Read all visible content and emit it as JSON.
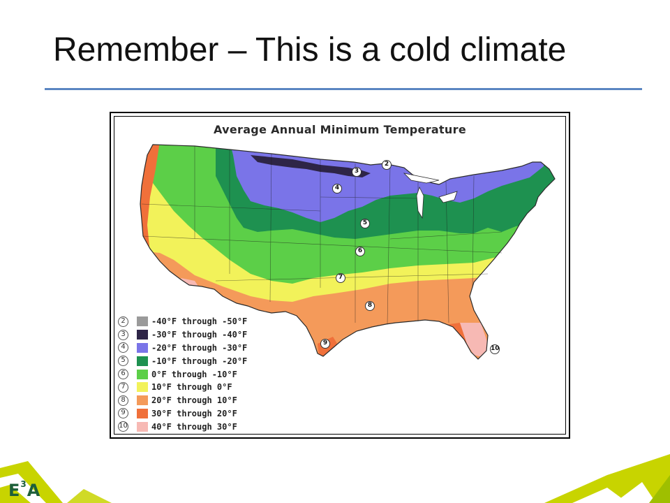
{
  "slide": {
    "title": "Remember – This is a cold climate"
  },
  "map": {
    "title": "Average Annual Minimum Temperature",
    "zones": [
      {
        "zone": "2",
        "label": "-40°F through -50°F",
        "color": "#9a9a9a"
      },
      {
        "zone": "3",
        "label": "-30°F through -40°F",
        "color": "#2e2547"
      },
      {
        "zone": "4",
        "label": "-20°F through -30°F",
        "color": "#7a74e8"
      },
      {
        "zone": "5",
        "label": "-10°F through -20°F",
        "color": "#1e9150"
      },
      {
        "zone": "6",
        "label": "0°F through -10°F",
        "color": "#5ccf48"
      },
      {
        "zone": "7",
        "label": "10°F through 0°F",
        "color": "#f2f25a"
      },
      {
        "zone": "8",
        "label": "20°F through 10°F",
        "color": "#f49a5a"
      },
      {
        "zone": "9",
        "label": "30°F through 20°F",
        "color": "#f0703a"
      },
      {
        "zone": "10",
        "label": "40°F through 30°F",
        "color": "#f7b9b4"
      }
    ],
    "markers": [
      "2",
      "3",
      "4",
      "5",
      "6",
      "7",
      "8",
      "9",
      "10"
    ]
  },
  "footer": {
    "brand": "E",
    "brand_sup": "3",
    "brand_end": "A",
    "accent_yellow": "#c8d400",
    "accent_green": "#1d5f3a"
  }
}
